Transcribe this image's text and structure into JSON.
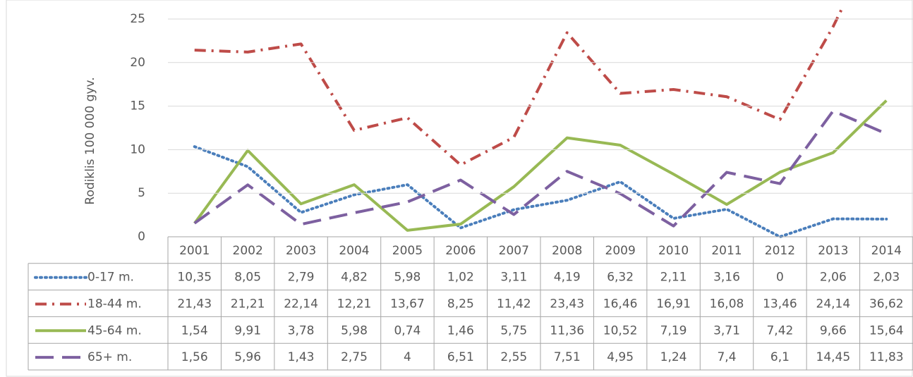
{
  "chart_data": {
    "type": "line",
    "y_label": "Rodiklis 100 000 gyv.",
    "categories": [
      "2001",
      "2002",
      "2003",
      "2004",
      "2005",
      "2006",
      "2007",
      "2008",
      "2009",
      "2010",
      "2011",
      "2012",
      "2013",
      "2014"
    ],
    "ylim": [
      0,
      25
    ],
    "yticks": [
      0,
      5,
      10,
      15,
      20,
      25
    ],
    "grid": true,
    "series": [
      {
        "name": "0-17 m.",
        "color": "#4a7ebb",
        "dash": "dotted",
        "values": [
          10.35,
          8.05,
          2.79,
          4.82,
          5.98,
          1.02,
          3.11,
          4.19,
          6.32,
          2.11,
          3.16,
          0,
          2.06,
          2.03
        ],
        "value_labels": [
          "10,35",
          "8,05",
          "2,79",
          "4,82",
          "5,98",
          "1,02",
          "3,11",
          "4,19",
          "6,32",
          "2,11",
          "3,16",
          "0",
          "2,06",
          "2,03"
        ]
      },
      {
        "name": "18-44 m.",
        "color": "#be4b48",
        "dash": "dashdot",
        "values": [
          21.43,
          21.21,
          22.14,
          12.21,
          13.67,
          8.25,
          11.42,
          23.43,
          16.46,
          16.91,
          16.08,
          13.46,
          24.14,
          36.62
        ],
        "value_labels": [
          "21,43",
          "21,21",
          "22,14",
          "12,21",
          "13,67",
          "8,25",
          "11,42",
          "23,43",
          "16,46",
          "16,91",
          "16,08",
          "13,46",
          "24,14",
          "36,62"
        ]
      },
      {
        "name": "45-64 m.",
        "color": "#98b954",
        "dash": "solid",
        "values": [
          1.54,
          9.91,
          3.78,
          5.98,
          0.74,
          1.46,
          5.75,
          11.36,
          10.52,
          7.19,
          3.71,
          7.42,
          9.66,
          15.64
        ],
        "value_labels": [
          "1,54",
          "9,91",
          "3,78",
          "5,98",
          "0,74",
          "1,46",
          "5,75",
          "11,36",
          "10,52",
          "7,19",
          "3,71",
          "7,42",
          "9,66",
          "15,64"
        ]
      },
      {
        "name": "65+ m.",
        "color": "#7d60a0",
        "dash": "longdash",
        "values": [
          1.56,
          5.96,
          1.43,
          2.75,
          4,
          6.51,
          2.55,
          7.51,
          4.95,
          1.24,
          7.4,
          6.1,
          14.45,
          11.83
        ],
        "value_labels": [
          "1,56",
          "5,96",
          "1,43",
          "2,75",
          "4",
          "6,51",
          "2,55",
          "7,51",
          "4,95",
          "1,24",
          "7,4",
          "6,1",
          "14,45",
          "11,83"
        ]
      }
    ]
  }
}
